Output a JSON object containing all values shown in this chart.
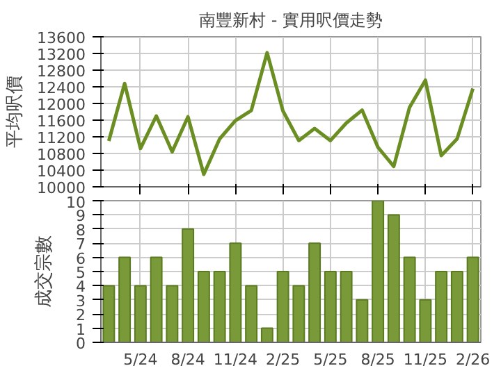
{
  "chart_data": [
    {
      "type": "line",
      "title": "南豐新村 - 實用呎價走勢",
      "ylabel": "平均呎價",
      "categories": [
        null,
        null,
        null,
        null,
        null,
        null,
        null,
        null,
        null,
        null,
        null,
        null,
        null,
        null,
        null,
        null,
        null,
        null,
        null,
        null,
        null,
        null,
        null,
        null
      ],
      "series": [
        {
          "color": "#6b8e23",
          "values": [
            11100,
            12480,
            10920,
            11700,
            10840,
            11680,
            10300,
            11150,
            11590,
            11830,
            13220,
            11820,
            11110,
            11400,
            11110,
            11530,
            11840,
            10950,
            10490,
            11910,
            12560,
            10750,
            11150,
            12360
          ]
        }
      ],
      "ylim": [
        10000,
        13600
      ],
      "yticks": [
        10000,
        10400,
        10800,
        11200,
        11600,
        12000,
        12400,
        12800,
        13200,
        13600
      ],
      "grid": true,
      "tick_labels": "y",
      "marker": "none",
      "line_style": "solid"
    },
    {
      "type": "bar",
      "ylabel": "成交宗數",
      "categories": [
        null,
        null,
        "5/24",
        null,
        null,
        "8/24",
        null,
        null,
        "11/24",
        null,
        null,
        "2/25",
        null,
        null,
        "5/25",
        null,
        null,
        "8/25",
        null,
        null,
        "11/25",
        null,
        null,
        "2/26"
      ],
      "series": [
        {
          "color": "#7a9a3a",
          "values": [
            4,
            6,
            4,
            6,
            4,
            8,
            5,
            5,
            7,
            4,
            1,
            5,
            4,
            7,
            5,
            5,
            3,
            10,
            9,
            6,
            3,
            5,
            5,
            6
          ]
        }
      ],
      "ylim": [
        0,
        10
      ],
      "yticks": [
        0,
        1,
        2,
        3,
        4,
        5,
        6,
        7,
        8,
        9,
        10
      ],
      "grid": true
    }
  ]
}
